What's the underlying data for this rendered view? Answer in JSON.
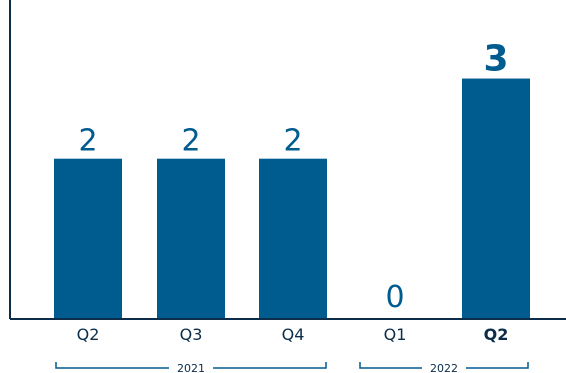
{
  "chart_data": {
    "type": "bar",
    "categories": [
      "Q2",
      "Q3",
      "Q4",
      "Q1",
      "Q2"
    ],
    "values": [
      2,
      2,
      2,
      0,
      3
    ],
    "value_labels": [
      "2",
      "2",
      "2",
      "0",
      "3"
    ],
    "highlight_index": 4,
    "groups": [
      {
        "label": "2021",
        "start_index": 0,
        "end_index": 2
      },
      {
        "label": "2022",
        "start_index": 3,
        "end_index": 4
      }
    ],
    "ylim": [
      0,
      3.98
    ],
    "grid": false,
    "bar_color": "#005b8f",
    "axis_color": "#0b2d4a"
  }
}
